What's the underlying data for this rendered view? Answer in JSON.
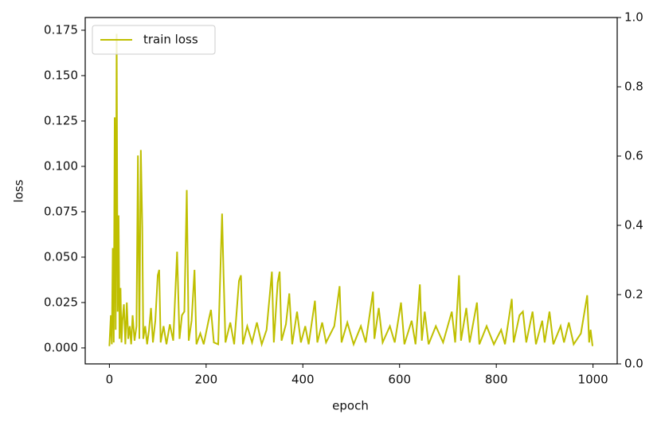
{
  "chart_data": {
    "type": "line",
    "xlabel": "epoch",
    "ylabel": "loss",
    "x": [
      0,
      3,
      5,
      7,
      9,
      11,
      13,
      15,
      17,
      19,
      21,
      23,
      25,
      27,
      30,
      33,
      36,
      39,
      42,
      45,
      48,
      52,
      56,
      59,
      62,
      65,
      68,
      70,
      74,
      78,
      82,
      86,
      90,
      95,
      100,
      103,
      106,
      112,
      118,
      125,
      132,
      140,
      145,
      150,
      155,
      160,
      164,
      170,
      176,
      180,
      188,
      195,
      205,
      210,
      216,
      225,
      233,
      236,
      240,
      250,
      258,
      268,
      272,
      276,
      285,
      295,
      305,
      315,
      325,
      336,
      340,
      348,
      352,
      356,
      365,
      372,
      378,
      388,
      396,
      405,
      412,
      425,
      430,
      440,
      448,
      465,
      476,
      480,
      492,
      505,
      520,
      530,
      545,
      548,
      557,
      565,
      580,
      590,
      603,
      610,
      625,
      633,
      642,
      646,
      652,
      660,
      675,
      690,
      708,
      715,
      723,
      727,
      738,
      745,
      760,
      765,
      780,
      795,
      810,
      818,
      832,
      836,
      848,
      855,
      862,
      875,
      882,
      895,
      900,
      910,
      918,
      933,
      940,
      950,
      960,
      975,
      988,
      992,
      995,
      999
    ],
    "series": [
      {
        "name": "train loss",
        "color": "#bfbf00",
        "values": [
          0.001,
          0.018,
          0.002,
          0.055,
          0.003,
          0.127,
          0.01,
          0.173,
          0.02,
          0.073,
          0.005,
          0.033,
          0.003,
          0.015,
          0.024,
          0.002,
          0.025,
          0.005,
          0.012,
          0.002,
          0.018,
          0.004,
          0.012,
          0.106,
          0.005,
          0.109,
          0.066,
          0.005,
          0.012,
          0.002,
          0.01,
          0.022,
          0.003,
          0.015,
          0.04,
          0.043,
          0.003,
          0.012,
          0.002,
          0.013,
          0.004,
          0.053,
          0.005,
          0.018,
          0.02,
          0.087,
          0.004,
          0.015,
          0.043,
          0.002,
          0.008,
          0.002,
          0.015,
          0.021,
          0.003,
          0.002,
          0.074,
          0.041,
          0.003,
          0.014,
          0.002,
          0.037,
          0.04,
          0.002,
          0.012,
          0.003,
          0.014,
          0.002,
          0.01,
          0.042,
          0.003,
          0.036,
          0.042,
          0.004,
          0.013,
          0.03,
          0.002,
          0.02,
          0.003,
          0.012,
          0.002,
          0.026,
          0.003,
          0.014,
          0.003,
          0.012,
          0.034,
          0.003,
          0.014,
          0.002,
          0.012,
          0.003,
          0.031,
          0.005,
          0.022,
          0.003,
          0.012,
          0.003,
          0.025,
          0.002,
          0.015,
          0.002,
          0.035,
          0.004,
          0.02,
          0.002,
          0.012,
          0.003,
          0.02,
          0.003,
          0.04,
          0.004,
          0.022,
          0.003,
          0.025,
          0.002,
          0.012,
          0.002,
          0.01,
          0.002,
          0.027,
          0.003,
          0.018,
          0.02,
          0.003,
          0.02,
          0.002,
          0.015,
          0.003,
          0.02,
          0.002,
          0.012,
          0.003,
          0.014,
          0.002,
          0.008,
          0.029,
          0.003,
          0.01,
          0.001
        ]
      }
    ],
    "xlim": [
      -50,
      1050
    ],
    "xticks": [
      0,
      200,
      400,
      600,
      800,
      1000
    ],
    "ylim": [
      -0.0088,
      0.182
    ],
    "yticks": [
      {
        "value": 0,
        "label": "0.000"
      },
      0.025,
      {
        "value": 0.05,
        "label": "0.050"
      },
      0.075,
      {
        "value": 0.1,
        "label": "0.100"
      },
      0.125,
      {
        "value": 0.15,
        "label": "0.150"
      },
      0.175
    ],
    "y2lim": [
      0,
      1
    ],
    "y2ticks": [
      {
        "value": 0,
        "label": "0.0"
      },
      0.2,
      0.4,
      0.6,
      0.8,
      {
        "value": 1,
        "label": "1.0"
      }
    ],
    "legend": "upper left"
  }
}
